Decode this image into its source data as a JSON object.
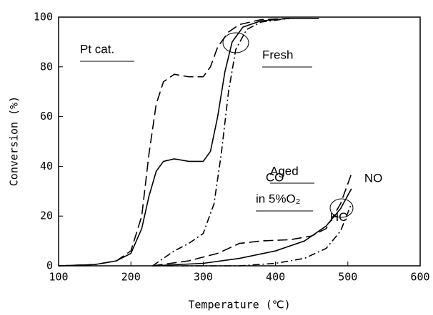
{
  "chart_data": {
    "type": "line",
    "xlabel": "Temperature (℃)",
    "ylabel": "Conversion (%)",
    "xlim": [
      100,
      600
    ],
    "xticks": [
      100,
      200,
      300,
      400,
      500,
      600
    ],
    "ylim": [
      0,
      100
    ],
    "yticks": [
      0,
      20,
      40,
      60,
      80,
      100
    ],
    "grid": false,
    "annotations": [
      "Pt cat.",
      "Fresh",
      "Aged",
      "in 5%O₂"
    ],
    "series": [
      {
        "color": "#000",
        "dash": "long",
        "x": [
          100,
          150,
          180,
          200,
          215,
          225,
          235,
          245,
          260,
          280,
          300,
          310,
          320,
          335,
          350,
          380,
          420,
          460
        ],
        "values": [
          0,
          0.5,
          2,
          6,
          20,
          45,
          65,
          74,
          77,
          76,
          76,
          80,
          88,
          94,
          97,
          99,
          99.5,
          99.5
        ]
      },
      {
        "color": "#000",
        "dash": "solid",
        "x": [
          100,
          150,
          180,
          200,
          215,
          225,
          235,
          245,
          260,
          280,
          300,
          310,
          320,
          330,
          340,
          355,
          380,
          420,
          460
        ],
        "values": [
          0,
          0.5,
          2,
          5,
          15,
          28,
          38,
          42,
          43,
          42,
          42,
          46,
          60,
          78,
          90,
          96,
          98.5,
          99.5,
          99.5
        ]
      },
      {
        "color": "#000",
        "dash": "dashdot",
        "x": [
          230,
          240,
          260,
          280,
          300,
          315,
          325,
          335,
          345,
          360,
          380,
          420,
          460
        ],
        "values": [
          0,
          2,
          6,
          9,
          13,
          25,
          45,
          70,
          87,
          95,
          98,
          99.5,
          99.5
        ]
      },
      {
        "name": "CO",
        "color": "#000",
        "dash": "long",
        "x": [
          230,
          280,
          320,
          350,
          380,
          420,
          450,
          470,
          490,
          505
        ],
        "values": [
          0,
          2,
          5,
          9,
          10,
          10.5,
          12,
          15,
          25,
          37
        ]
      },
      {
        "name": "NO",
        "color": "#000",
        "dash": "solid",
        "x": [
          230,
          300,
          350,
          400,
          440,
          470,
          490,
          505
        ],
        "values": [
          0,
          1,
          3,
          6,
          10,
          16,
          23,
          31
        ]
      },
      {
        "name": "HC",
        "color": "#000",
        "dash": "dashdot",
        "x": [
          230,
          350,
          400,
          440,
          470,
          490,
          505
        ],
        "values": [
          0,
          0,
          1,
          3,
          7,
          14,
          25
        ]
      }
    ]
  }
}
